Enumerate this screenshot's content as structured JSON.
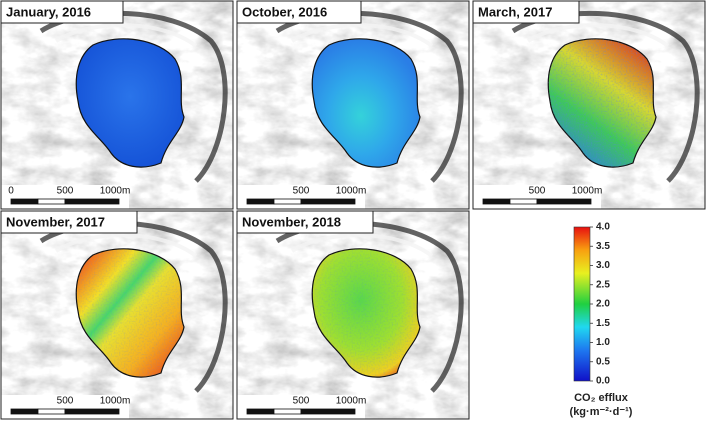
{
  "panels": [
    {
      "title": "January, 2016",
      "scale_labels": [
        "0",
        "500",
        "1000m"
      ]
    },
    {
      "title": "October, 2016",
      "scale_labels": [
        "500",
        "1000m"
      ]
    },
    {
      "title": "March, 2017",
      "scale_labels": [
        "500",
        "1000m"
      ]
    },
    {
      "title": "November, 2017",
      "scale_labels": [
        "500",
        "1000m"
      ]
    },
    {
      "title": "November, 2018",
      "scale_labels": [
        "500",
        "1000m"
      ]
    }
  ],
  "colorbar": {
    "range": [
      0,
      4
    ],
    "ticks": [
      {
        "value": 0,
        "label": "0.0"
      },
      {
        "value": 0.5,
        "label": "0.5"
      },
      {
        "value": 1,
        "label": "1.0"
      },
      {
        "value": 1.5,
        "label": "1.5"
      },
      {
        "value": 2,
        "label": "2.0"
      },
      {
        "value": 2.5,
        "label": "2.5"
      },
      {
        "value": 3,
        "label": "3.0"
      },
      {
        "value": 3.5,
        "label": "3.5"
      },
      {
        "value": 4,
        "label": "4.0"
      }
    ],
    "title": "CO₂ efflux",
    "units": "(kg·m⁻²·d⁻¹)"
  }
}
